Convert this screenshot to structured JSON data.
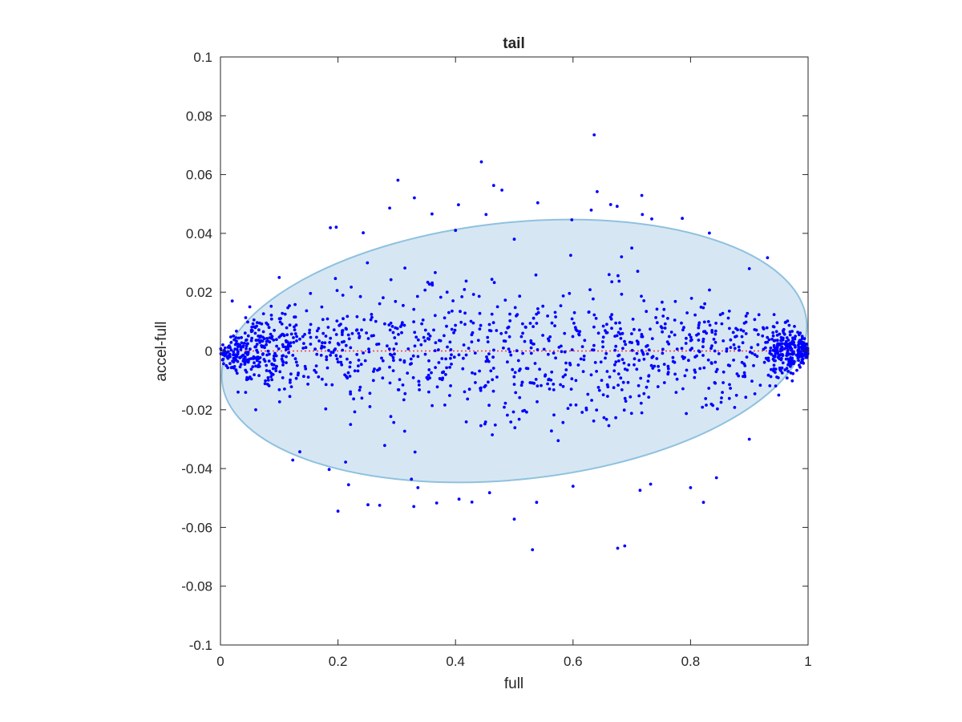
{
  "chart_data": {
    "type": "scatter",
    "title": "tail",
    "xlabel": "full",
    "ylabel": "accel-full",
    "xlim": [
      0,
      1
    ],
    "ylim": [
      -0.1,
      0.1
    ],
    "xticks": [
      "0",
      "0.2",
      "0.4",
      "0.6",
      "0.8",
      "1"
    ],
    "yticks": [
      "-0.1",
      "-0.08",
      "-0.06",
      "-0.04",
      "-0.02",
      "0",
      "0.02",
      "0.04",
      "0.06",
      "0.08",
      "0.1"
    ],
    "grid": false,
    "colors": {
      "points": "#0000ff",
      "ellipse_fill": "#d6e7f3",
      "ellipse_edge": "#8fc1df",
      "zero_line": "#ff3333",
      "axes": "#262626"
    },
    "reference_line": {
      "y": 0,
      "style": "dotted"
    },
    "ellipse": {
      "x_range": [
        0,
        1
      ],
      "y_range": [
        -0.0437,
        0.0437
      ],
      "center": [
        0.5,
        0
      ],
      "tilt": "slight"
    },
    "series": [
      {
        "marker": "dot",
        "points": [
          [
            0.636,
            0.0735
          ],
          [
            0.444,
            0.0643
          ],
          [
            0.302,
            0.0581
          ],
          [
            0.465,
            0.0563
          ],
          [
            0.479,
            0.0547
          ],
          [
            0.641,
            0.0542
          ],
          [
            0.717,
            0.0529
          ],
          [
            0.33,
            0.0521
          ],
          [
            0.54,
            0.0504
          ],
          [
            0.405,
            0.0497
          ],
          [
            0.664,
            0.0498
          ],
          [
            0.675,
            0.0492
          ],
          [
            0.288,
            0.0486
          ],
          [
            0.631,
            0.0479
          ],
          [
            0.36,
            0.0466
          ],
          [
            0.452,
            0.0464
          ],
          [
            0.718,
            0.0464
          ],
          [
            0.786,
            0.0451
          ],
          [
            0.734,
            0.0449
          ],
          [
            0.598,
            0.0446
          ],
          [
            0.187,
            0.0419
          ],
          [
            0.197,
            0.0421
          ],
          [
            0.243,
            0.0402
          ],
          [
            0.832,
            0.0401
          ],
          [
            0.5,
            0.038
          ],
          [
            0.4,
            0.041
          ],
          [
            0.25,
            0.03
          ],
          [
            0.1,
            0.025
          ],
          [
            0.7,
            0.035
          ],
          [
            0.9,
            0.028
          ],
          [
            0.931,
            0.0317
          ],
          [
            0.05,
            0.015
          ],
          [
            0.02,
            0.017
          ],
          [
            0.2,
            -0.0545
          ],
          [
            0.251,
            -0.0523
          ],
          [
            0.271,
            -0.0525
          ],
          [
            0.329,
            -0.0529
          ],
          [
            0.368,
            -0.0517
          ],
          [
            0.428,
            -0.0514
          ],
          [
            0.5,
            -0.0572
          ],
          [
            0.538,
            -0.0515
          ],
          [
            0.531,
            -0.0676
          ],
          [
            0.676,
            -0.0671
          ],
          [
            0.688,
            -0.0663
          ],
          [
            0.714,
            -0.0474
          ],
          [
            0.732,
            -0.0453
          ],
          [
            0.822,
            -0.0515
          ],
          [
            0.8,
            -0.0465
          ],
          [
            0.844,
            -0.0431
          ],
          [
            0.135,
            -0.0343
          ],
          [
            0.123,
            -0.0371
          ],
          [
            0.218,
            -0.0455
          ],
          [
            0.213,
            -0.0378
          ],
          [
            0.185,
            -0.0403
          ],
          [
            0.325,
            -0.0436
          ],
          [
            0.336,
            -0.0465
          ],
          [
            0.406,
            -0.0504
          ],
          [
            0.458,
            -0.0482
          ],
          [
            0.6,
            -0.046
          ],
          [
            0.9,
            -0.03
          ],
          [
            0.03,
            -0.014
          ],
          [
            0.06,
            -0.02
          ],
          [
            0.95,
            -0.015
          ],
          [
            0.99,
            0.005
          ],
          [
            0.01,
            -0.005
          ]
        ]
      }
    ]
  }
}
